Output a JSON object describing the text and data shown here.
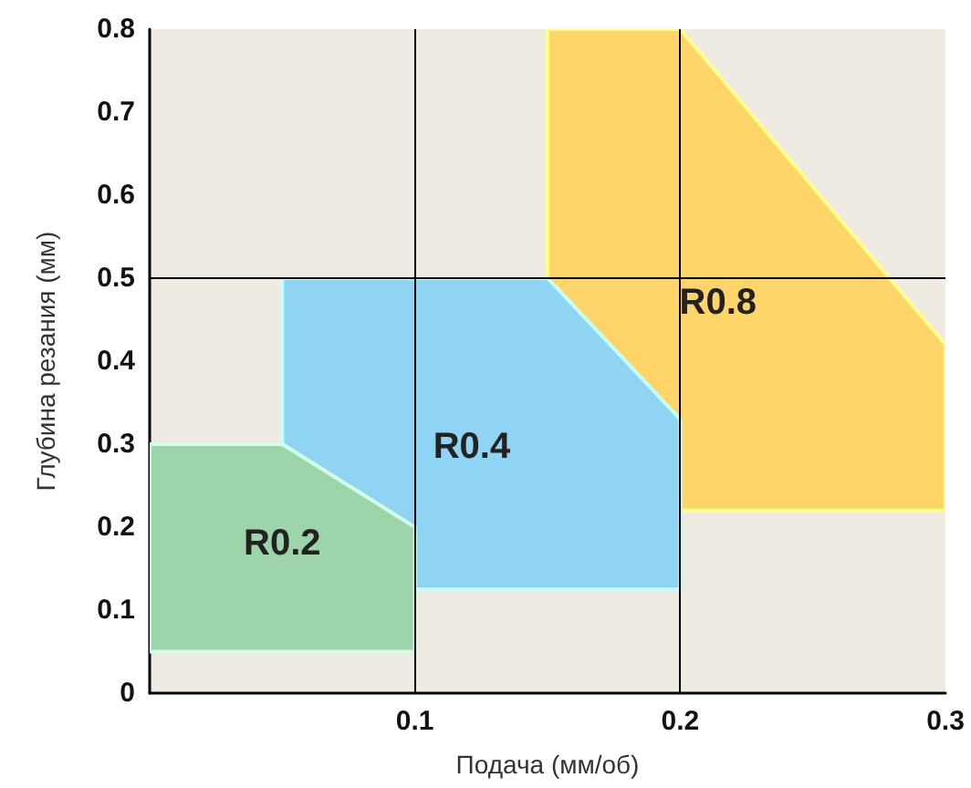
{
  "chart_data": {
    "type": "area",
    "xlabel": "Подача (мм/об)",
    "ylabel": "Глубина резания (мм)",
    "xlim": [
      0,
      0.3
    ],
    "xticks": [
      0.1,
      0.2,
      0.3
    ],
    "ylim": [
      0,
      0.8
    ],
    "yticks": [
      0,
      0.1,
      0.2,
      0.3,
      0.4,
      0.5,
      0.6,
      0.7,
      0.8
    ],
    "grid": false,
    "legend": false,
    "ref_lines": [
      {
        "axis": "x",
        "value": 0.1,
        "label": null
      },
      {
        "axis": "x",
        "value": 0.2,
        "label": null
      },
      {
        "axis": "y",
        "value": 0.5,
        "label": null
      }
    ],
    "series": [
      {
        "name": "R0.2",
        "color": "#9dd4a9",
        "x": [
          0,
          0.05,
          0.1,
          0.1,
          0
        ],
        "values": [
          0.3,
          0.3,
          0.2,
          0.05,
          0.05
        ]
      },
      {
        "name": "R0.4",
        "color": "#8fd4f2",
        "x": [
          0.05,
          0.15,
          0.2,
          0.2,
          0.1,
          0.1,
          0.05
        ],
        "values": [
          0.5,
          0.5,
          0.33,
          0.125,
          0.125,
          0.2,
          0.3
        ]
      },
      {
        "name": "R0.8",
        "color": "#ffd468",
        "x": [
          0.15,
          0.2,
          0.3,
          0.3,
          0.2,
          0.2,
          0.15
        ],
        "values": [
          0.8,
          0.8,
          0.42,
          0.22,
          0.22,
          0.33,
          0.5
        ]
      }
    ]
  }
}
